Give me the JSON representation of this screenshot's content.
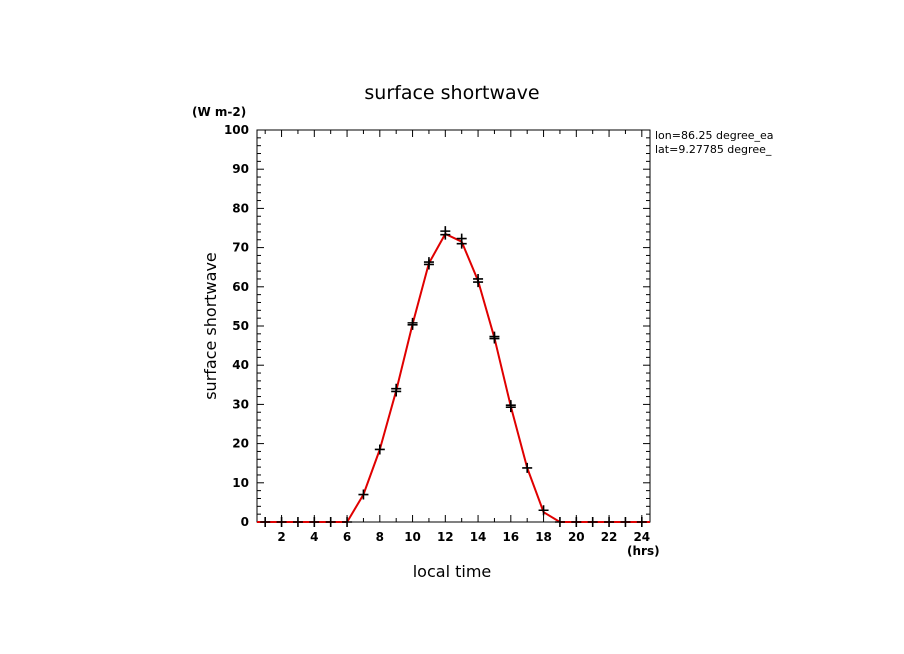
{
  "chart_data": {
    "type": "line",
    "title": "surface shortwave",
    "xlabel": "local time",
    "ylabel": "surface shortwave",
    "x_unit": "(hrs)",
    "y_unit": "(W m-2)",
    "xlim": [
      0.5,
      24.5
    ],
    "ylim": [
      0,
      100
    ],
    "x_ticks": [
      2,
      4,
      6,
      8,
      10,
      12,
      14,
      16,
      18,
      20,
      22,
      24
    ],
    "y_ticks": [
      0,
      10,
      20,
      30,
      40,
      50,
      60,
      70,
      80,
      90,
      100
    ],
    "annotations": [
      "lon=86.25 degree_ea",
      "lat=9.27785 degree_"
    ],
    "line_color": "#e00000",
    "marker_color": "#000000",
    "series": [
      {
        "kind": "line",
        "x": [
          0.5,
          1,
          2,
          3,
          4,
          5,
          6,
          7,
          8,
          9,
          10,
          11,
          12,
          13,
          14,
          15,
          16,
          17,
          18,
          19,
          20,
          21,
          22,
          23,
          24,
          24.5
        ],
        "y": [
          0,
          0,
          0,
          0,
          0,
          0,
          0,
          7,
          18.5,
          33.5,
          50.5,
          66,
          73.5,
          71.5,
          61.5,
          47,
          29.5,
          13.8,
          2.5,
          0,
          0,
          0,
          0,
          0,
          0,
          0
        ]
      },
      {
        "kind": "markers",
        "points": [
          [
            1,
            0
          ],
          [
            2,
            0
          ],
          [
            3,
            0
          ],
          [
            4,
            0
          ],
          [
            5,
            0
          ],
          [
            6,
            0
          ],
          [
            7,
            7
          ],
          [
            8,
            18.5
          ],
          [
            9,
            33.3
          ],
          [
            9,
            34.0
          ],
          [
            10,
            50.3
          ],
          [
            10,
            50.8
          ],
          [
            11,
            65.7
          ],
          [
            11,
            66.3
          ],
          [
            12,
            73.3
          ],
          [
            12,
            74.2
          ],
          [
            13,
            71.0
          ],
          [
            13,
            72.3
          ],
          [
            14,
            61.2
          ],
          [
            14,
            62.0
          ],
          [
            15,
            46.8
          ],
          [
            15,
            47.3
          ],
          [
            16,
            29.3
          ],
          [
            16,
            29.8
          ],
          [
            17,
            13.8
          ],
          [
            18,
            3.0
          ],
          [
            19,
            0
          ],
          [
            20,
            0
          ],
          [
            21,
            0
          ],
          [
            22,
            0
          ],
          [
            23,
            0
          ],
          [
            24,
            0
          ]
        ]
      }
    ]
  }
}
